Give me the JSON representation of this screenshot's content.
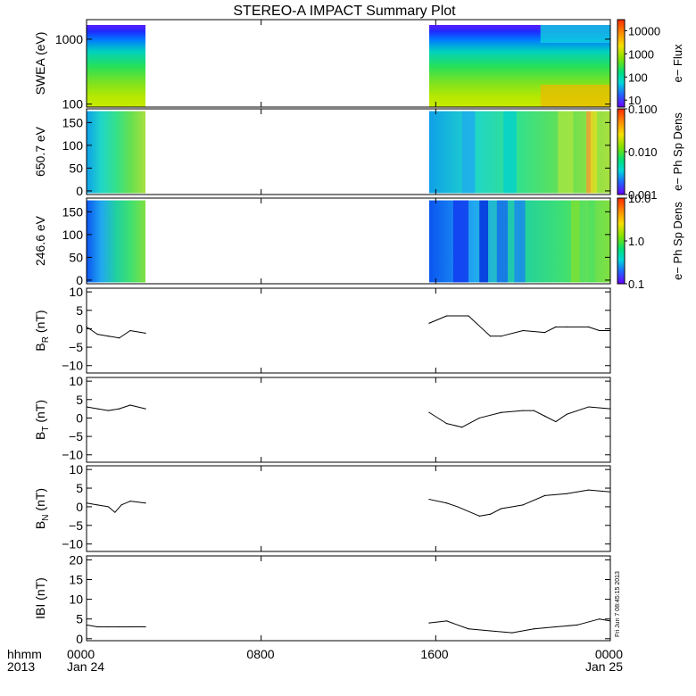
{
  "title": "STEREO-A IMPACT Summary Plot",
  "x_axis": {
    "row1_labels": [
      "0000",
      "0800",
      "1600",
      "0000"
    ],
    "row2_labels": [
      "Jan 24",
      "",
      "",
      "Jan 25"
    ],
    "corner_row1": "hhmm",
    "corner_row2": "2013",
    "tick_hours": [
      0,
      8,
      16,
      24
    ]
  },
  "timestamp": "Fri Jun 7 08:45:15 2013",
  "colors": {
    "trace": "#000000",
    "frame": "#000000"
  },
  "chart_data": [
    {
      "type": "heatmap",
      "ylabel": "SWEA (eV)",
      "y_scale": "log",
      "ylim": [
        90,
        2000
      ],
      "yticks": [
        1000,
        100
      ],
      "ytick_labels": [
        "1000",
        "100"
      ],
      "data_intervals_hours": [
        [
          0,
          2.7
        ],
        [
          15.7,
          24
        ]
      ],
      "colorbar": {
        "label": "e− Flux",
        "scale": "log",
        "range": [
          5,
          30000
        ],
        "tick_labels": [
          "10000",
          "1000",
          "100",
          "10"
        ],
        "tick_values": [
          10000,
          1000,
          100,
          10
        ]
      }
    },
    {
      "type": "heatmap",
      "ylabel": "650.7 eV",
      "y_scale": "linear",
      "ylim": [
        -8,
        180
      ],
      "yticks": [
        150,
        100,
        50,
        0
      ],
      "ytick_labels": [
        "150",
        "100",
        "50",
        "0"
      ],
      "data_intervals_hours": [
        [
          0,
          2.7
        ],
        [
          15.7,
          24
        ]
      ],
      "colorbar": {
        "label": "e− Ph Sp Dens",
        "scale": "log",
        "range": [
          0.001,
          0.1
        ],
        "tick_labels": [
          "0.100",
          "0.010",
          "0.001"
        ],
        "tick_values": [
          0.1,
          0.01,
          0.001
        ]
      }
    },
    {
      "type": "heatmap",
      "ylabel": "246.6 eV",
      "y_scale": "linear",
      "ylim": [
        -8,
        180
      ],
      "yticks": [
        150,
        100,
        50,
        0
      ],
      "ytick_labels": [
        "150",
        "100",
        "50",
        "0"
      ],
      "data_intervals_hours": [
        [
          0,
          2.7
        ],
        [
          15.7,
          24
        ]
      ],
      "colorbar": {
        "label": "e− Ph Sp Dens",
        "scale": "log",
        "range": [
          0.1,
          10
        ],
        "tick_labels": [
          "10.0",
          "1.0",
          "0.1"
        ],
        "tick_values": [
          10,
          1,
          0.1
        ]
      }
    },
    {
      "type": "line",
      "ylabel_main": "B",
      "ylabel_sub": "R",
      "ylabel_unit": " (nT)",
      "ylim": [
        -12,
        11
      ],
      "yticks": [
        10,
        5,
        0,
        -5,
        -10
      ],
      "ytick_labels": [
        "10",
        "5",
        "0",
        "−5",
        "−10"
      ],
      "x": [
        0,
        0.5,
        1,
        1.5,
        2,
        2.7,
        15.7,
        16.5,
        17.5,
        18.5,
        19,
        20,
        21,
        21.5,
        22,
        23,
        23.5,
        24
      ],
      "values": [
        0.5,
        -1.5,
        -2,
        -2.5,
        -0.5,
        -1.2,
        1.5,
        3.5,
        3.5,
        -2,
        -2,
        -0.5,
        -1,
        0.5,
        0.5,
        0.5,
        -0.5,
        -0.5
      ]
    },
    {
      "type": "line",
      "ylabel_main": "B",
      "ylabel_sub": "T",
      "ylabel_unit": " (nT)",
      "ylim": [
        -12,
        11
      ],
      "yticks": [
        10,
        5,
        0,
        -5,
        -10
      ],
      "ytick_labels": [
        "10",
        "5",
        "0",
        "−5",
        "−10"
      ],
      "x": [
        0,
        0.5,
        1,
        1.5,
        2,
        2.7,
        15.7,
        16.5,
        17.2,
        18,
        19,
        20,
        20.5,
        21,
        21.5,
        22,
        23,
        24
      ],
      "values": [
        3,
        2.5,
        2,
        2.5,
        3.5,
        2.5,
        1.5,
        -1.5,
        -2.5,
        0,
        1.5,
        2,
        2,
        0.5,
        -1,
        1,
        3,
        2.5
      ]
    },
    {
      "type": "line",
      "ylabel_main": "B",
      "ylabel_sub": "N",
      "ylabel_unit": " (nT)",
      "ylim": [
        -12,
        11
      ],
      "yticks": [
        10,
        5,
        0,
        -5,
        -10
      ],
      "ytick_labels": [
        "10",
        "5",
        "0",
        "−5",
        "−10"
      ],
      "x": [
        0,
        0.5,
        1,
        1.3,
        1.6,
        2,
        2.7,
        15.7,
        16.5,
        17,
        18,
        18.5,
        19,
        20,
        21,
        22,
        23,
        24
      ],
      "values": [
        1,
        0.5,
        0,
        -1.5,
        0.5,
        1.5,
        1,
        2,
        1,
        0,
        -2.5,
        -2,
        -0.5,
        0.5,
        3,
        3.5,
        4.5,
        4
      ]
    },
    {
      "type": "line",
      "ylabel_main": "IBI",
      "ylabel_sub": "",
      "ylabel_unit": " (nT)",
      "ylim": [
        -0.5,
        21
      ],
      "yticks": [
        20,
        15,
        10,
        5,
        0
      ],
      "ytick_labels": [
        "20",
        "15",
        "10",
        "5",
        "0"
      ],
      "x": [
        0,
        0.5,
        1,
        1.5,
        2,
        2.7,
        15.7,
        16.5,
        17.5,
        18.5,
        19.5,
        20.5,
        21.5,
        22.5,
        23.5,
        24
      ],
      "values": [
        3.5,
        3,
        3,
        3,
        3,
        3,
        4,
        4.5,
        2.5,
        2,
        1.5,
        2.5,
        3,
        3.5,
        5,
        4.5
      ]
    }
  ]
}
